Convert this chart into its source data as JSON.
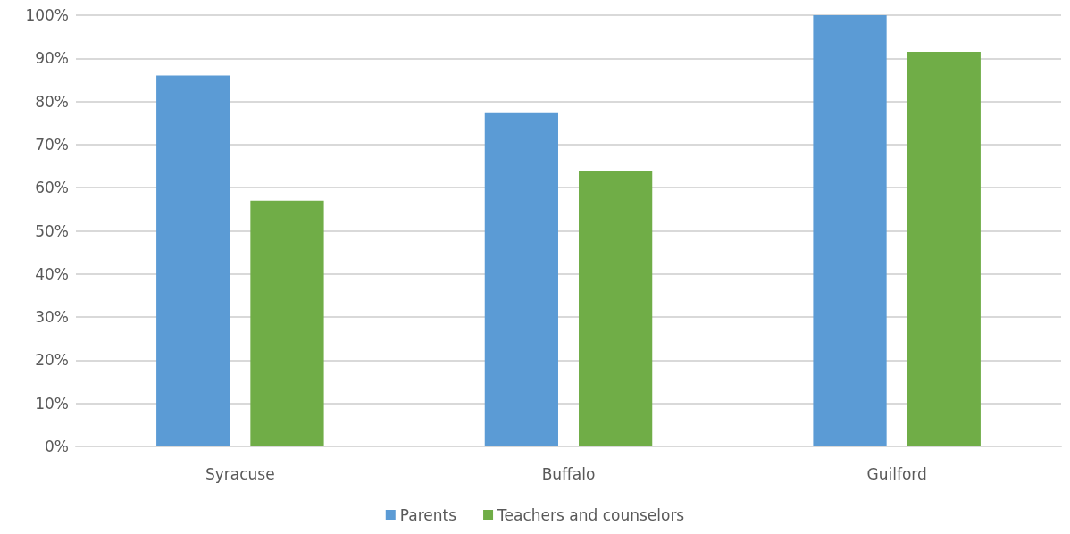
{
  "chart_data": {
    "type": "bar",
    "categories": [
      "Syracuse",
      "Buffalo",
      "Guilford"
    ],
    "series": [
      {
        "name": "Parents",
        "color": "#5b9bd5",
        "values": [
          86,
          77.5,
          100
        ]
      },
      {
        "name": "Teachers and counselors",
        "color": "#70ad47",
        "values": [
          57,
          64,
          91.5
        ]
      }
    ],
    "ylim": [
      0,
      100
    ],
    "yticks": [
      {
        "value": 0,
        "label": "0%"
      },
      {
        "value": 10,
        "label": "10%"
      },
      {
        "value": 20,
        "label": "20%"
      },
      {
        "value": 30,
        "label": "30%"
      },
      {
        "value": 40,
        "label": "40%"
      },
      {
        "value": 50,
        "label": "50%"
      },
      {
        "value": 60,
        "label": "60%"
      },
      {
        "value": 70,
        "label": "70%"
      },
      {
        "value": 80,
        "label": "80%"
      },
      {
        "value": 90,
        "label": "90%"
      },
      {
        "value": 100,
        "label": "100%"
      }
    ],
    "grid": "y",
    "legend": "bottom"
  }
}
